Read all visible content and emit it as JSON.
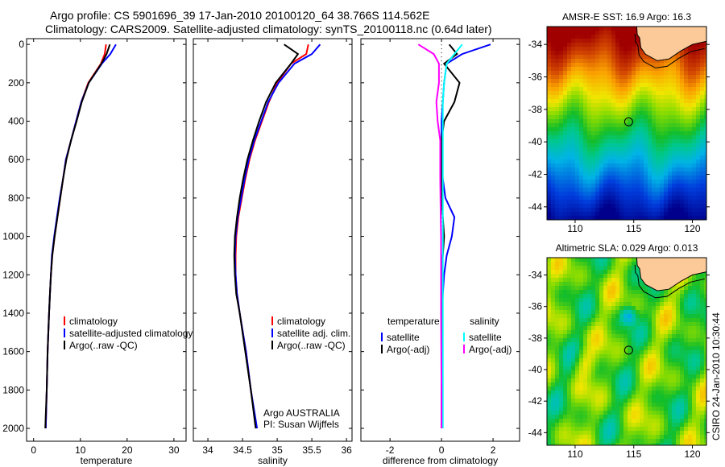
{
  "title": {
    "line1": "Argo profile: CS 5901696_39 17-Jan-2010 20100120_64 38.766S 114.562E",
    "line2": "Climatology: CARS2009. Satellite-adjusted climatology: synTS_20100118.nc (0.64d later)"
  },
  "credit": "CSIRO 24-Jan-2010 10:30:44",
  "colors": {
    "clim": "#ff0000",
    "sat": "#0000ff",
    "argo": "#000000",
    "sal_sat": "#00ffff",
    "sal_argo": "#ff00ff"
  },
  "chart_data": [
    {
      "type": "line",
      "xlabel": "temperature",
      "xlim": [
        -1.5,
        32.6
      ],
      "ylim": [
        2067,
        -30
      ],
      "xticks": [
        0,
        10,
        20,
        30
      ],
      "yticks": [
        0,
        200,
        400,
        600,
        800,
        1000,
        1200,
        1400,
        1600,
        1800,
        2000
      ],
      "depth": [
        0,
        50,
        100,
        200,
        300,
        400,
        500,
        600,
        700,
        800,
        900,
        1000,
        1100,
        1200,
        1300,
        1400,
        1600,
        1800,
        2000
      ],
      "series": [
        {
          "name": "climatology",
          "color": "#ff0000",
          "values": [
            15.5,
            15.2,
            14.4,
            11.7,
            10.2,
            9.1,
            8.0,
            6.9,
            6.3,
            5.7,
            5.1,
            4.5,
            4.0,
            3.7,
            3.5,
            3.3,
            3.0,
            2.8,
            2.6
          ]
        },
        {
          "name": "satellite-adjusted climatology",
          "color": "#0000ff",
          "values": [
            17.6,
            16.4,
            14.6,
            11.8,
            10.2,
            9.1,
            8.0,
            6.9,
            6.3,
            5.6,
            5.0,
            4.4,
            3.9,
            3.7,
            3.5,
            3.3,
            3.0,
            2.8,
            2.6
          ]
        },
        {
          "name": "Argo(..raw -QC)",
          "color": "#000000",
          "values": [
            16.3,
            15.6,
            14.5,
            11.8,
            10.3,
            9.2,
            8.0,
            7.0,
            6.3,
            5.7,
            5.1,
            4.5,
            4.0,
            3.7,
            3.5,
            3.3,
            3.0,
            2.8,
            2.5
          ]
        }
      ]
    },
    {
      "type": "line",
      "xlabel": "salinity",
      "xlim": [
        33.79,
        36.08
      ],
      "ylim": [
        2067,
        -30
      ],
      "xticks": [
        34,
        34.5,
        35,
        35.5,
        36
      ],
      "depth": [
        0,
        50,
        100,
        200,
        300,
        400,
        500,
        600,
        700,
        800,
        900,
        1000,
        1100,
        1200,
        1300,
        1400,
        1600,
        1800,
        2000
      ],
      "series": [
        {
          "name": "climatology",
          "color": "#ff0000",
          "values": [
            35.45,
            35.42,
            35.2,
            35.0,
            34.88,
            34.78,
            34.68,
            34.6,
            34.54,
            34.49,
            34.44,
            34.41,
            34.4,
            34.4,
            34.42,
            34.46,
            34.55,
            34.62,
            34.7
          ]
        },
        {
          "name": "satellite adj. clim.",
          "color": "#0000ff",
          "values": [
            35.62,
            35.5,
            35.25,
            35.02,
            34.87,
            34.77,
            34.67,
            34.59,
            34.53,
            34.48,
            34.43,
            34.4,
            34.39,
            34.4,
            34.42,
            34.46,
            34.55,
            34.62,
            34.71
          ]
        },
        {
          "name": "Argo(..raw -QC)",
          "color": "#000000",
          "values": [
            35.1,
            35.3,
            35.2,
            34.98,
            34.84,
            34.74,
            34.65,
            34.57,
            34.51,
            34.46,
            34.42,
            34.39,
            34.38,
            34.39,
            34.41,
            34.46,
            34.54,
            34.62,
            34.69
          ]
        }
      ],
      "annotation": [
        "Argo AUSTRALIA",
        "PI: Susan Wijffels"
      ]
    },
    {
      "type": "line",
      "xlabel": "difference from climatology",
      "xlim": [
        -3.13,
        3.03
      ],
      "ylim": [
        2067,
        -30
      ],
      "xticks": [
        -2,
        0,
        2
      ],
      "depth": [
        0,
        50,
        100,
        200,
        300,
        400,
        500,
        600,
        700,
        800,
        900,
        1000,
        1100,
        1200,
        1300,
        1400,
        1600,
        1800,
        2000
      ],
      "legend_headers": [
        "temperature",
        "salinity"
      ],
      "series": [
        {
          "name": "satellite",
          "group": "temperature",
          "color": "#0000ff",
          "values": [
            1.9,
            0.8,
            0.2,
            0.1,
            0.05,
            0.0,
            0.0,
            0.0,
            0.05,
            0.15,
            0.5,
            0.4,
            0.2,
            0.1,
            0.05,
            0.03,
            0.02,
            0.01,
            0.0
          ]
        },
        {
          "name": "Argo(-adj)",
          "group": "temperature",
          "color": "#000000",
          "values": [
            0.3,
            0.6,
            0.1,
            0.7,
            0.5,
            0.1,
            0.0,
            0.0,
            0.0,
            0.0,
            0.05,
            0.1,
            0.05,
            0.0,
            0.0,
            0.0,
            0.0,
            0.0,
            0.0
          ]
        },
        {
          "name": "satellite",
          "group": "salinity",
          "color": "#00ffff",
          "values": [
            0.8,
            0.5,
            0.2,
            0.1,
            0.05,
            0.05,
            0.05,
            0.05,
            0.05,
            0.05,
            0.05,
            0.05,
            0.05,
            0.05,
            0.05,
            0.05,
            0.05,
            0.05,
            0.05
          ]
        },
        {
          "name": "Argo(-adj)",
          "group": "salinity",
          "color": "#ff00ff",
          "values": [
            -0.9,
            -0.3,
            -0.1,
            -0.1,
            -0.2,
            -0.15,
            -0.05,
            -0.05,
            -0.05,
            -0.04,
            -0.03,
            -0.02,
            -0.02,
            -0.02,
            -0.02,
            -0.02,
            -0.01,
            0.0,
            0.0
          ]
        }
      ]
    },
    {
      "type": "heatmap",
      "title": "AMSR-E SST: 16.9 Argo: 16.3",
      "xlim": [
        107.6,
        121.2
      ],
      "ylim": [
        -44.8,
        -32.9
      ],
      "xticks": [
        110,
        115,
        120
      ],
      "yticks": [
        -34,
        -36,
        -38,
        -40,
        -42,
        -44
      ],
      "marker": {
        "lon": 114.562,
        "lat": -38.766
      }
    },
    {
      "type": "heatmap",
      "title": "Altimetric SLA: 0.029 Argo: 0.013",
      "xlim": [
        107.6,
        121.2
      ],
      "ylim": [
        -44.8,
        -32.9
      ],
      "xticks": [
        110,
        115,
        120
      ],
      "yticks": [
        -34,
        -36,
        -38,
        -40,
        -42,
        -44
      ],
      "marker": {
        "lon": 114.562,
        "lat": -38.766
      }
    }
  ]
}
